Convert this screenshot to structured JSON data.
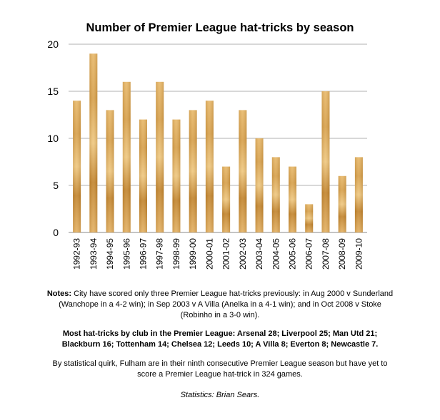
{
  "chart_data": {
    "type": "bar",
    "title": "Number of Premier League hat-tricks by season",
    "xlabel": "",
    "ylabel": "",
    "ylim": [
      0,
      20
    ],
    "yticks": [
      0,
      5,
      10,
      15,
      20
    ],
    "grid": true,
    "categories": [
      "1992-93",
      "1993-94",
      "1994-95",
      "1995-96",
      "1996-97",
      "1997-98",
      "1998-99",
      "1999-00",
      "2000-01",
      "2001-02",
      "2002-03",
      "2003-04",
      "2004-05",
      "2005-06",
      "2006-07",
      "2007-08",
      "2008-09",
      "2009-10"
    ],
    "values": [
      14,
      19,
      13,
      16,
      12,
      16,
      12,
      13,
      14,
      7,
      13,
      10,
      8,
      7,
      3,
      15,
      6,
      8
    ]
  },
  "notes": {
    "label": "Notes:",
    "text": " City have scored only three Premier League hat-tricks previously: in Aug 2000 v Sunderland (Wanchope in a 4-2 win); in Sep 2003 v A Villa (Anelka in a 4-1 win); and in Oct 2008 v Stoke (Robinho in a 3-0 win)."
  },
  "clubs": "Most hat-tricks by club in the Premier League: Arsenal 28; Liverpool 25; Man Utd 21; Blackburn 16; Tottenham 14; Chelsea 12; Leeds 10; A Villa 8; Everton 8; Newcastle 7.",
  "quirk": "By statistical quirk, Fulham are in their ninth consecutive Premier League season but have yet to score a Premier League hat-trick in 324 games.",
  "credit": "Statistics: Brian Sears.",
  "colors": {
    "bar_light": "#ecc276",
    "bar_mid": "#d49a3e",
    "bar_dark": "#ae6c1c",
    "grid": "#b0b0b0"
  }
}
